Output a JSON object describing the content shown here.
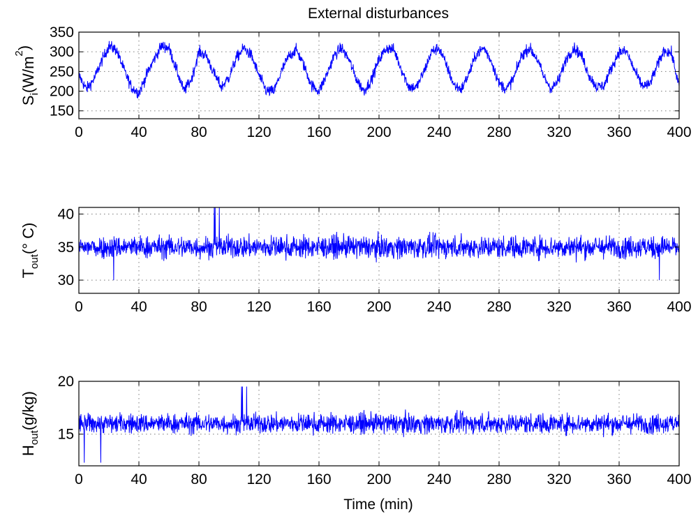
{
  "chart_data": [
    {
      "type": "line",
      "title": "External disturbances",
      "ylabel": {
        "base": "S",
        "sub": "i",
        "unit_open": "(W/m",
        "sup": "2",
        "unit_close": ")"
      },
      "xlabel": "",
      "xlim": [
        0,
        400
      ],
      "ylim": [
        130,
        350
      ],
      "xticks": [
        0,
        40,
        80,
        120,
        160,
        200,
        240,
        280,
        320,
        360,
        400
      ],
      "yticks": [
        150,
        200,
        250,
        300,
        350
      ],
      "grid": true,
      "color": "#0000ff",
      "series": [
        {
          "x": [
            0,
            5,
            10,
            15,
            20,
            25,
            30,
            35,
            40,
            45,
            50,
            55,
            60,
            65,
            70,
            75,
            80,
            85,
            90,
            95,
            100,
            105,
            110,
            115,
            120,
            125,
            130,
            135,
            140,
            145,
            150,
            155,
            160,
            165,
            170,
            175,
            180,
            185,
            190,
            195,
            200,
            205,
            210,
            215,
            220,
            225,
            230,
            235,
            240,
            245,
            250,
            255,
            260,
            265,
            270,
            275,
            280,
            285,
            290,
            295,
            300,
            305,
            310,
            315,
            320,
            325,
            330,
            335,
            340,
            345,
            350,
            355,
            360,
            365,
            370,
            375,
            380,
            385,
            390,
            395,
            400
          ],
          "y": [
            240,
            205,
            230,
            275,
            315,
            305,
            255,
            210,
            195,
            240,
            280,
            315,
            310,
            255,
            200,
            230,
            300,
            290,
            245,
            210,
            235,
            285,
            310,
            290,
            240,
            200,
            200,
            250,
            290,
            305,
            265,
            215,
            200,
            240,
            290,
            310,
            280,
            230,
            200,
            230,
            280,
            310,
            305,
            255,
            210,
            210,
            250,
            300,
            310,
            265,
            215,
            205,
            245,
            295,
            310,
            275,
            220,
            205,
            235,
            290,
            310,
            285,
            235,
            205,
            230,
            285,
            310,
            290,
            240,
            210,
            215,
            260,
            300,
            300,
            255,
            215,
            215,
            260,
            305,
            295,
            210
          ],
          "noise_amplitude": 25,
          "samples": 2000
        }
      ]
    },
    {
      "type": "line",
      "ylabel": {
        "base": "T",
        "sub": "out",
        "unit_open": "(",
        "degree": "°",
        "unit_close": " C)"
      },
      "xlabel": "",
      "xlim": [
        0,
        400
      ],
      "ylim": [
        28,
        41
      ],
      "xticks": [
        0,
        40,
        80,
        120,
        160,
        200,
        240,
        280,
        320,
        360,
        400
      ],
      "yticks": [
        30,
        35,
        40
      ],
      "grid": true,
      "color": "#0000ff",
      "series": [
        {
          "mean": 35,
          "noise_amplitude": 1.8,
          "min": 30,
          "max": 41,
          "samples": 2000
        }
      ]
    },
    {
      "type": "line",
      "ylabel": {
        "base": "H",
        "sub": "out",
        "unit_open": "(g/kg)",
        "unit_close": ""
      },
      "xlabel": "Time (min)",
      "xlim": [
        0,
        400
      ],
      "ylim": [
        12,
        20
      ],
      "xticks": [
        0,
        40,
        80,
        120,
        160,
        200,
        240,
        280,
        320,
        360,
        400
      ],
      "yticks": [
        15,
        20
      ],
      "grid": true,
      "color": "#0000ff",
      "series": [
        {
          "mean": 16,
          "noise_amplitude": 1.0,
          "min": 12.3,
          "max": 19.5,
          "samples": 2000
        }
      ]
    }
  ]
}
